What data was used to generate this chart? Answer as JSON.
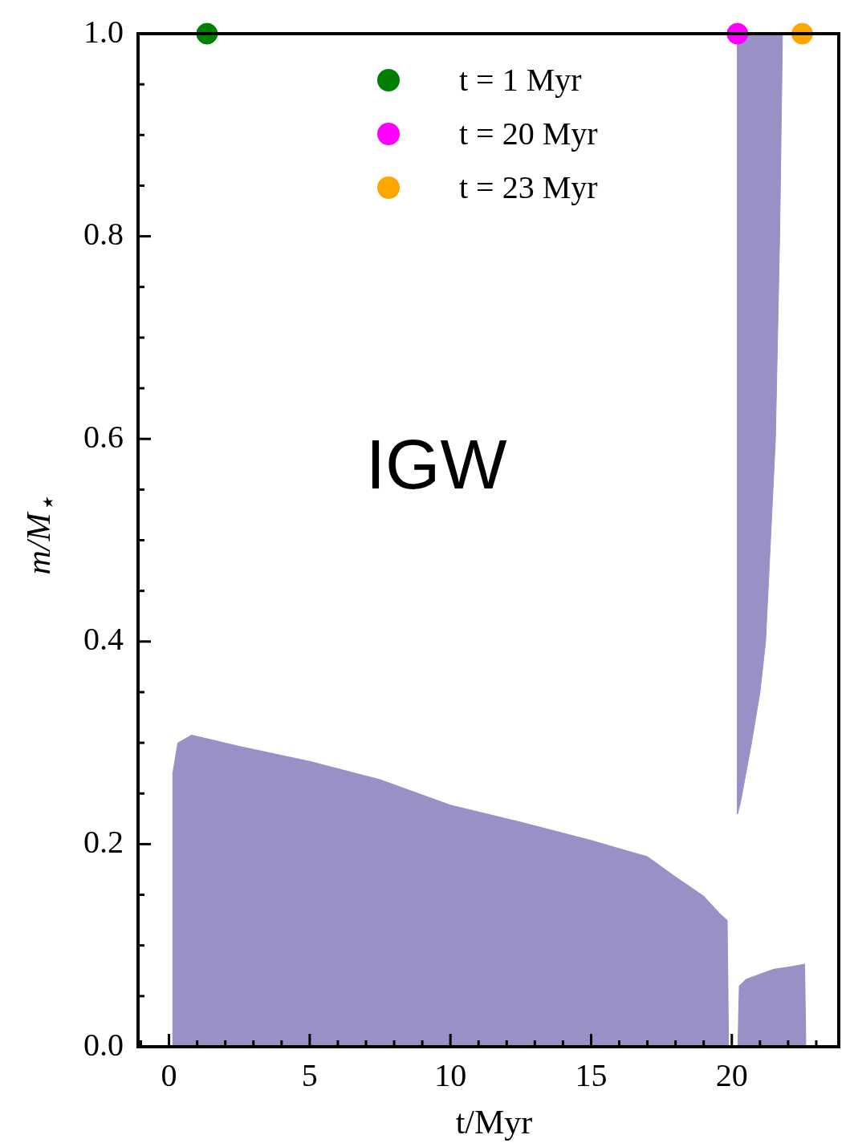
{
  "chart_data": {
    "type": "area",
    "xlabel": "t/Myr",
    "ylabel": "m/M$_{⋆}$",
    "annotations": [
      "IGW"
    ],
    "xlim": [
      -1.1,
      23.8
    ],
    "ylim": [
      0,
      1
    ],
    "xticks": [
      {
        "value": -1,
        "label": null
      },
      0,
      {
        "value": 1,
        "label": null
      },
      {
        "value": 2,
        "label": null
      },
      {
        "value": 3,
        "label": null
      },
      {
        "value": 4,
        "label": null
      },
      5,
      {
        "value": 6,
        "label": null
      },
      {
        "value": 7,
        "label": null
      },
      {
        "value": 8,
        "label": null
      },
      {
        "value": 9,
        "label": null
      },
      10,
      {
        "value": 11,
        "label": null
      },
      {
        "value": 12,
        "label": null
      },
      {
        "value": 13,
        "label": null
      },
      {
        "value": 14,
        "label": null
      },
      15,
      {
        "value": 16,
        "label": null
      },
      {
        "value": 17,
        "label": null
      },
      {
        "value": 18,
        "label": null
      },
      {
        "value": 19,
        "label": null
      },
      20,
      {
        "value": 21,
        "label": null
      },
      {
        "value": 22,
        "label": null
      },
      {
        "value": 23,
        "label": null
      }
    ],
    "yticks": [
      {
        "value": 0,
        "label": "0.0"
      },
      {
        "value": 0.05,
        "label": null
      },
      {
        "value": 0.1,
        "label": null
      },
      {
        "value": 0.15,
        "label": null
      },
      {
        "value": 0.2,
        "label": "0.2"
      },
      {
        "value": 0.25,
        "label": null
      },
      {
        "value": 0.3,
        "label": null
      },
      {
        "value": 0.35,
        "label": null
      },
      {
        "value": 0.4,
        "label": "0.4"
      },
      {
        "value": 0.45,
        "label": null
      },
      {
        "value": 0.5,
        "label": null
      },
      {
        "value": 0.55,
        "label": null
      },
      {
        "value": 0.6,
        "label": "0.6"
      },
      {
        "value": 0.65,
        "label": null
      },
      {
        "value": 0.7,
        "label": null
      },
      {
        "value": 0.75,
        "label": null
      },
      {
        "value": 0.8,
        "label": "0.8"
      },
      {
        "value": 0.85,
        "label": null
      },
      {
        "value": 0.9,
        "label": null
      },
      {
        "value": 0.95,
        "label": null
      },
      {
        "value": 1,
        "label": "1.0"
      }
    ],
    "legend": "top",
    "series": [
      {
        "color": "#9891c5",
        "x": [
          0.1,
          0.12,
          0.3,
          0.8,
          2.5,
          5,
          7.5,
          10,
          12.5,
          15,
          17,
          18,
          19,
          19.6,
          19.85,
          19.9
        ],
        "values": [
          0,
          0.27,
          0.3,
          0.308,
          0.297,
          0.282,
          0.264,
          0.239,
          0.222,
          0.204,
          0.188,
          0.168,
          0.149,
          0.131,
          0.125,
          0
        ]
      },
      {
        "color": "#9891c5",
        "x": [
          20.2,
          20.25,
          20.5,
          21,
          21.5,
          22,
          22.6,
          22.65
        ],
        "values": [
          0,
          0.06,
          0.067,
          0.072,
          0.077,
          0.079,
          0.082,
          0
        ]
      },
      {
        "color": "#9891c5",
        "x": [
          20.2,
          20.2,
          20.3,
          20.5,
          20.7,
          21,
          21.2,
          21.55,
          21.7,
          21.8
        ],
        "values": [
          1,
          0.23,
          0.24,
          0.27,
          0.3,
          0.35,
          0.4,
          0.6,
          0.8,
          1
        ]
      },
      {
        "type": "scatter",
        "name": "t = 1 Myr",
        "color": "#008000",
        "marker": "circle",
        "x": [
          1.35
        ],
        "values": [
          1
        ]
      },
      {
        "type": "scatter",
        "name": "t = 20 Myr",
        "color": "#ff00ff",
        "marker": "circle",
        "x": [
          20.2
        ],
        "values": [
          1
        ]
      },
      {
        "type": "scatter",
        "name": "t = 23 Myr",
        "color": "#ffa500",
        "marker": "circle",
        "x": [
          22.5
        ],
        "values": [
          1
        ]
      }
    ]
  }
}
